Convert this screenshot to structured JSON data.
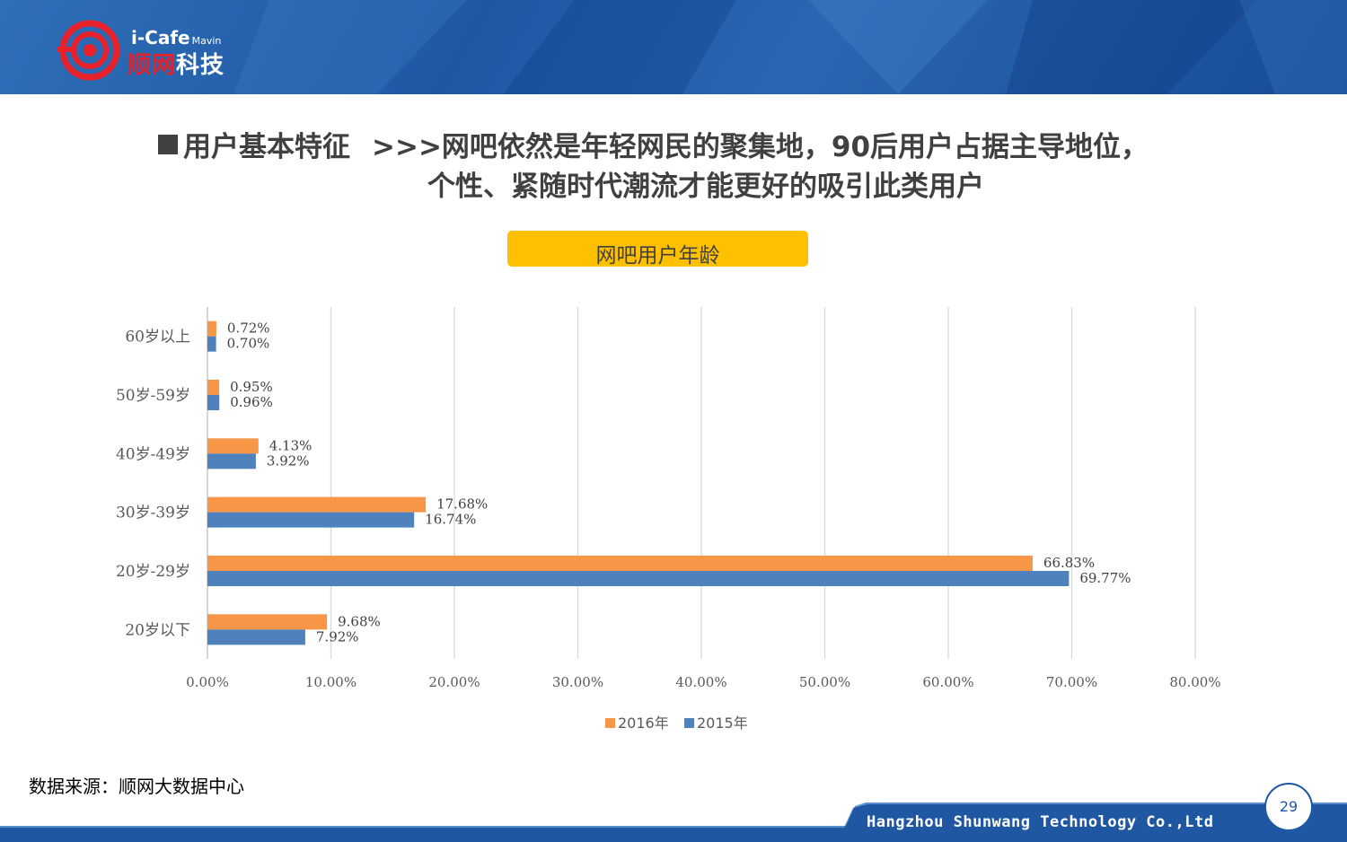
{
  "logo": {
    "brand_top": "i-Cafe",
    "brand_sub": "Mavin",
    "brand_cn_red": "顺网",
    "brand_cn_white": "科技"
  },
  "title": {
    "heading": "用户基本特征",
    "line1": ">>>网吧依然是年轻网民的聚集地，90后用户占据主导地位，",
    "line2": "个性、紧随时代潮流才能更好的吸引此类用户"
  },
  "chart_title": "网吧用户年龄",
  "chart_data": {
    "type": "bar",
    "orientation": "horizontal",
    "categories": [
      "60岁以上",
      "50岁-59岁",
      "40岁-49岁",
      "30岁-39岁",
      "20岁-29岁",
      "20岁以下"
    ],
    "series": [
      {
        "name": "2016年",
        "color": "#f79646",
        "values": [
          0.72,
          0.95,
          4.13,
          17.68,
          66.83,
          9.68
        ],
        "labels": [
          "0.72%",
          "0.95%",
          "4.13%",
          "17.68%",
          "66.83%",
          "9.68%"
        ]
      },
      {
        "name": "2015年",
        "color": "#4f81bd",
        "values": [
          0.7,
          0.96,
          3.92,
          16.74,
          69.77,
          7.92
        ],
        "labels": [
          "0.70%",
          "0.96%",
          "3.92%",
          "16.74%",
          "69.77%",
          "7.92%"
        ]
      }
    ],
    "xlim": [
      0,
      80
    ],
    "ticks": [
      "0.00%",
      "10.00%",
      "20.00%",
      "30.00%",
      "40.00%",
      "50.00%",
      "60.00%",
      "70.00%",
      "80.00%"
    ],
    "grid": true,
    "legend": "bottom-center"
  },
  "source": "数据来源：顺网大数据中心",
  "footer": {
    "company": "Hangzhou Shunwang Technology Co.,Ltd",
    "page": "29"
  }
}
